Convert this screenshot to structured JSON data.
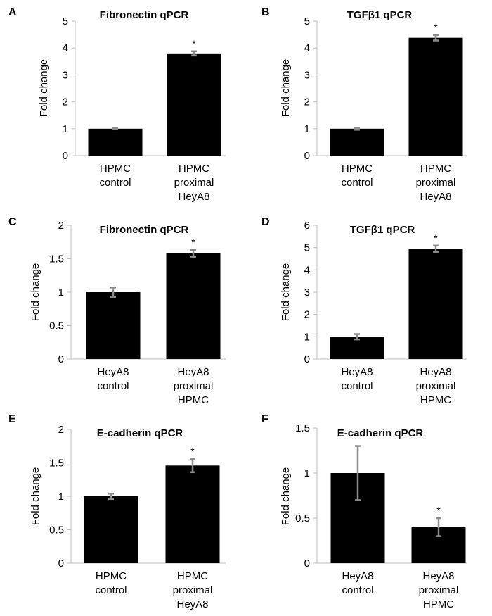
{
  "chart_data": [
    {
      "panel": "A",
      "type": "bar",
      "title": "Fibronectin qPCR",
      "ylabel": "Fold change",
      "xlabel": "",
      "ylim": [
        0,
        5
      ],
      "yticks": [
        "0",
        "1",
        "2",
        "3",
        "4",
        "5"
      ],
      "tick_values": [
        0,
        1,
        2,
        3,
        4,
        5
      ],
      "categories": [
        [
          "HPMC",
          "control"
        ],
        [
          "HPMC",
          "proximal",
          "HeyA8"
        ]
      ],
      "values": [
        1.0,
        3.8
      ],
      "errors": [
        0.02,
        0.08
      ],
      "significance": [
        "",
        "*"
      ]
    },
    {
      "panel": "B",
      "type": "bar",
      "title": "TGFβ1 qPCR",
      "ylabel": "Fold change",
      "xlabel": "",
      "ylim": [
        0,
        5
      ],
      "yticks": [
        "0",
        "1",
        "2",
        "3",
        "4",
        "5"
      ],
      "tick_values": [
        0,
        1,
        2,
        3,
        4,
        5
      ],
      "categories": [
        [
          "HPMC",
          "control"
        ],
        [
          "HPMC",
          "proximal",
          "HeyA8"
        ]
      ],
      "values": [
        1.0,
        4.38
      ],
      "errors": [
        0.04,
        0.1
      ],
      "significance": [
        "",
        "*"
      ]
    },
    {
      "panel": "C",
      "type": "bar",
      "title": "Fibronectin qPCR",
      "ylabel": "Fold change",
      "xlabel": "",
      "ylim": [
        0,
        2
      ],
      "yticks": [
        "0",
        "0.5",
        "1",
        "1.5",
        "2"
      ],
      "tick_values": [
        0,
        0.5,
        1,
        1.5,
        2
      ],
      "categories": [
        [
          "HeyA8",
          "control"
        ],
        [
          "HeyA8",
          "proximal",
          "HPMC"
        ]
      ],
      "values": [
        1.0,
        1.58
      ],
      "errors": [
        0.07,
        0.05
      ],
      "significance": [
        "",
        "*"
      ]
    },
    {
      "panel": "D",
      "type": "bar",
      "title": "TGFβ1 qPCR",
      "ylabel": "Fold change",
      "xlabel": "",
      "ylim": [
        0,
        6
      ],
      "yticks": [
        "0",
        "1",
        "2",
        "3",
        "4",
        "5",
        "6"
      ],
      "tick_values": [
        0,
        1,
        2,
        3,
        4,
        5,
        6
      ],
      "categories": [
        [
          "HeyA8",
          "control"
        ],
        [
          "HeyA8",
          "proximal",
          "HPMC"
        ]
      ],
      "values": [
        1.0,
        4.95
      ],
      "errors": [
        0.12,
        0.14
      ],
      "significance": [
        "",
        "*"
      ]
    },
    {
      "panel": "E",
      "type": "bar",
      "title": "E-cadherin qPCR",
      "ylabel": "Fold change",
      "xlabel": "",
      "ylim": [
        0,
        2
      ],
      "yticks": [
        "0",
        "0.5",
        "1",
        "1.5",
        "2"
      ],
      "tick_values": [
        0,
        0.5,
        1,
        1.5,
        2
      ],
      "categories": [
        [
          "HPMC",
          "control"
        ],
        [
          "HPMC",
          "proximal",
          "HeyA8"
        ]
      ],
      "values": [
        1.0,
        1.46
      ],
      "errors": [
        0.04,
        0.1
      ],
      "significance": [
        "",
        "*"
      ]
    },
    {
      "panel": "F",
      "type": "bar",
      "title": "E-cadherin qPCR",
      "ylabel": "Fold change",
      "xlabel": "",
      "ylim": [
        0,
        1.5
      ],
      "yticks": [
        "0",
        "0.5",
        "1",
        "1.5"
      ],
      "tick_values": [
        0,
        0.5,
        1,
        1.5
      ],
      "categories": [
        [
          "HeyA8",
          "control"
        ],
        [
          "HeyA8",
          "proximal",
          "HPMC"
        ]
      ],
      "values": [
        1.0,
        0.4
      ],
      "errors": [
        0.3,
        0.1
      ],
      "significance": [
        "",
        "*"
      ]
    }
  ],
  "colors": {
    "bar": "#000000",
    "error_bar": "#8c8c8c",
    "axis": "#bfbfbf",
    "text": "#000000"
  }
}
